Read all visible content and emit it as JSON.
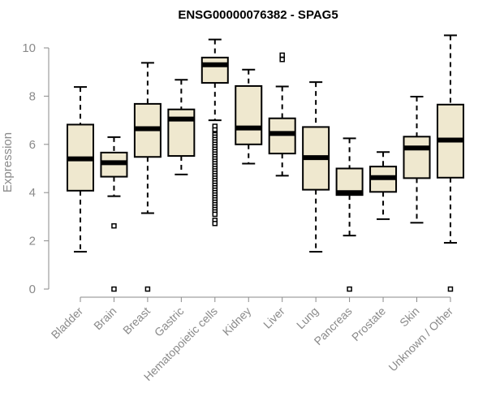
{
  "chart_data": {
    "type": "boxplot",
    "title": "ENSG00000076382 - SPAG5",
    "xlabel": "",
    "ylabel": "Expression",
    "ylim": [
      0,
      10.5
    ],
    "yticks": [
      0,
      2,
      4,
      6,
      8,
      10
    ],
    "categories": [
      "Bladder",
      "Brain",
      "Breast",
      "Gastric",
      "Hematopoietic cells",
      "Kidney",
      "Liver",
      "Lung",
      "Pancreas",
      "Prostate",
      "Skin",
      "Unknown / Other"
    ],
    "boxes": [
      {
        "name": "Bladder",
        "whisker_low": 1.55,
        "q1": 4.08,
        "median": 5.4,
        "q3": 6.82,
        "whisker_high": 8.38,
        "outliers": []
      },
      {
        "name": "Brain",
        "whisker_low": 3.85,
        "q1": 4.66,
        "median": 5.24,
        "q3": 5.66,
        "whisker_high": 6.3,
        "outliers": [
          2.62,
          0.0
        ]
      },
      {
        "name": "Breast",
        "whisker_low": 3.15,
        "q1": 5.48,
        "median": 6.65,
        "q3": 7.68,
        "whisker_high": 9.38,
        "outliers": [
          0.0
        ]
      },
      {
        "name": "Gastric",
        "whisker_low": 4.75,
        "q1": 5.52,
        "median": 7.05,
        "q3": 7.45,
        "whisker_high": 8.68,
        "outliers": []
      },
      {
        "name": "Hematopoietic cells",
        "whisker_low": 7.0,
        "q1": 8.55,
        "median": 9.3,
        "q3": 9.6,
        "whisker_high": 10.35,
        "outliers": [
          6.75,
          6.6,
          6.45,
          6.4,
          6.3,
          6.2,
          6.1,
          6.0,
          5.9,
          5.8,
          5.7,
          5.6,
          5.5,
          5.4,
          5.3,
          5.2,
          5.1,
          5.0,
          4.9,
          4.8,
          4.7,
          4.6,
          4.5,
          4.4,
          4.3,
          4.2,
          4.1,
          4.0,
          3.9,
          3.8,
          3.7,
          3.6,
          3.5,
          3.4,
          3.3,
          3.2,
          3.1,
          2.85,
          2.72
        ]
      },
      {
        "name": "Kidney",
        "whisker_low": 5.2,
        "q1": 6.0,
        "median": 6.68,
        "q3": 8.42,
        "whisker_high": 9.1,
        "outliers": []
      },
      {
        "name": "Liver",
        "whisker_low": 4.7,
        "q1": 5.62,
        "median": 6.45,
        "q3": 7.08,
        "whisker_high": 8.4,
        "outliers": [
          9.7,
          9.52
        ]
      },
      {
        "name": "Lung",
        "whisker_low": 1.55,
        "q1": 4.12,
        "median": 5.45,
        "q3": 6.72,
        "whisker_high": 8.58,
        "outliers": []
      },
      {
        "name": "Pancreas",
        "whisker_low": 2.22,
        "q1": 3.9,
        "median": 4.0,
        "q3": 5.0,
        "whisker_high": 6.25,
        "outliers": [
          0.0
        ]
      },
      {
        "name": "Prostate",
        "whisker_low": 2.9,
        "q1": 4.03,
        "median": 4.62,
        "q3": 5.08,
        "whisker_high": 5.68,
        "outliers": []
      },
      {
        "name": "Skin",
        "whisker_low": 2.75,
        "q1": 4.6,
        "median": 5.85,
        "q3": 6.32,
        "whisker_high": 7.98,
        "outliers": []
      },
      {
        "name": "Unknown / Other",
        "whisker_low": 1.92,
        "q1": 4.62,
        "median": 6.18,
        "q3": 7.65,
        "whisker_high": 10.52,
        "outliers": [
          0.0
        ]
      }
    ],
    "colors": {
      "box_fill": "#efe8cf",
      "line": "#000000",
      "axis": "#8a8a8a"
    }
  }
}
